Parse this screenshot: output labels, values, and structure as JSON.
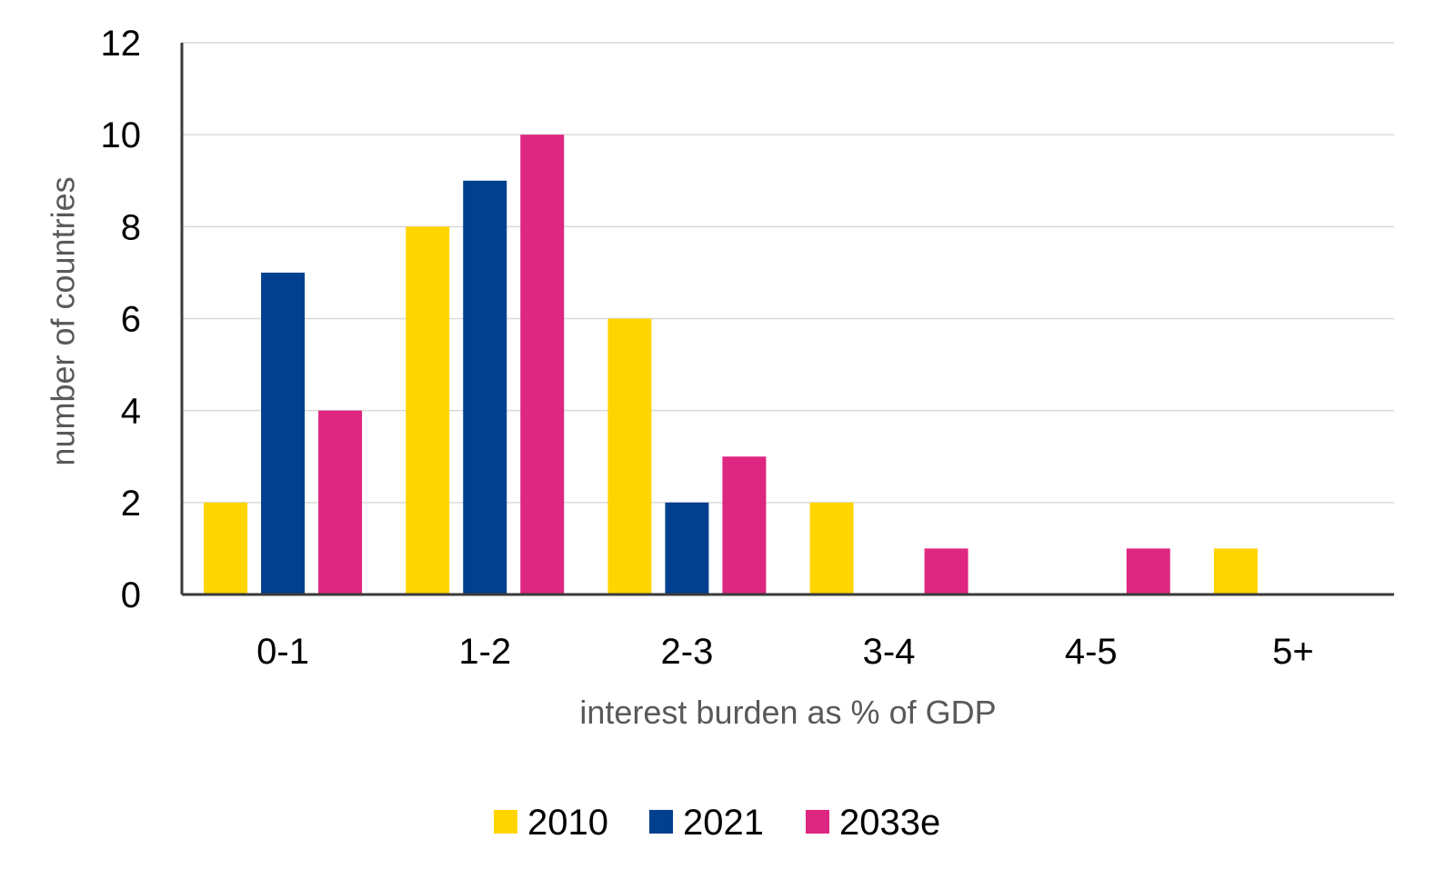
{
  "chart_data": {
    "type": "bar",
    "title": "",
    "xlabel": "interest burden as % of GDP",
    "ylabel": "number of countries",
    "ylim": [
      0,
      12
    ],
    "yticks": [
      0,
      2,
      4,
      6,
      8,
      10,
      12
    ],
    "grid": true,
    "legend_position": "bottom",
    "categories": [
      "0-1",
      "1-2",
      "2-3",
      "3-4",
      "4-5",
      "5+"
    ],
    "series": [
      {
        "name": "2010",
        "color": "#FFD500",
        "values": [
          2,
          8,
          6,
          2,
          0,
          1
        ]
      },
      {
        "name": "2021",
        "color": "#00408F",
        "values": [
          7,
          9,
          2,
          0,
          0,
          0
        ]
      },
      {
        "name": "2033e",
        "color": "#DE2780",
        "values": [
          4,
          10,
          3,
          1,
          1,
          0
        ]
      }
    ]
  }
}
